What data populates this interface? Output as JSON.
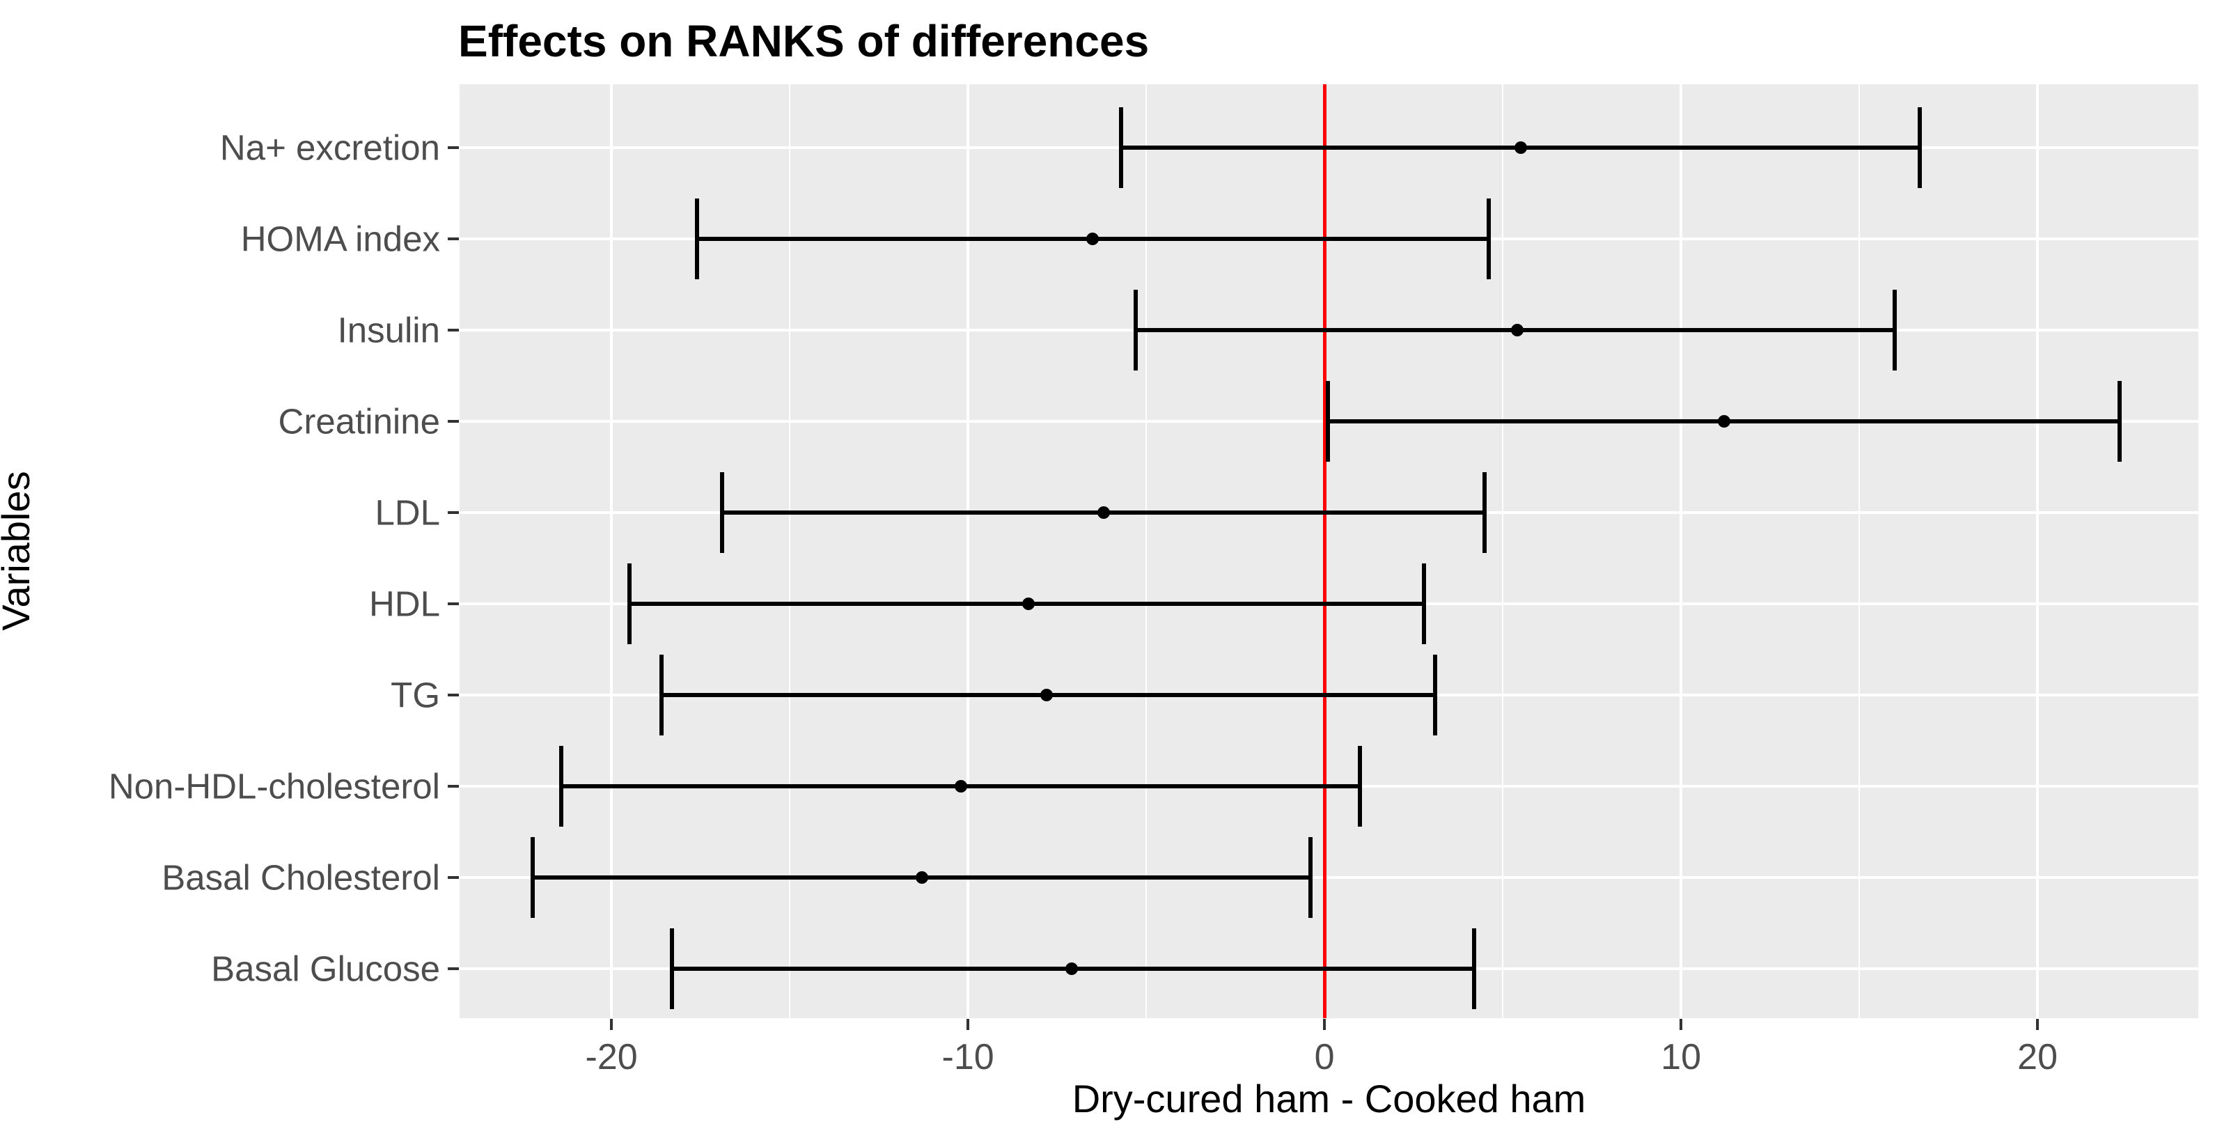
{
  "title": "Effects on RANKS of differences",
  "axes": {
    "y_title": "Variables",
    "x_title": "Dry-cured ham - Cooked ham"
  },
  "colors": {
    "panel_background": "#EBEBEB",
    "gridline": "#FFFFFF",
    "reference_line": "#FF0000",
    "errorbar": "#000000",
    "tick_mark": "#333333",
    "tick_label": "#4D4D4D",
    "title_text": "#000000"
  },
  "chart_data": {
    "type": "scatter",
    "subtype": "horizontal-dot-with-error-bars",
    "title": "Effects on RANKS of differences",
    "xlabel": "Dry-cured ham - Cooked ham",
    "ylabel": "Variables",
    "xlim": [
      -24.26,
      24.51
    ],
    "x_major_ticks": [
      -20,
      -10,
      0,
      10,
      20
    ],
    "x_minor_gridlines": [
      -25,
      -15,
      -5,
      5,
      15
    ],
    "grid": true,
    "legend": false,
    "reference_line_x": 0,
    "categories": [
      "Na+ excretion",
      "HOMA index",
      "Insulin",
      "Creatinine",
      "LDL",
      "HDL",
      "TG",
      "Non-HDL-cholesterol",
      "Basal Cholesterol",
      "Basal Glucose"
    ],
    "points": [
      {
        "label": "Na+ excretion",
        "mean": 5.5,
        "low": -5.7,
        "high": 16.7
      },
      {
        "label": "HOMA index",
        "mean": -6.5,
        "low": -17.6,
        "high": 4.6
      },
      {
        "label": "Insulin",
        "mean": 5.4,
        "low": -5.3,
        "high": 16.0
      },
      {
        "label": "Creatinine",
        "mean": 11.2,
        "low": 0.1,
        "high": 22.3
      },
      {
        "label": "LDL",
        "mean": -6.2,
        "low": -16.9,
        "high": 4.5
      },
      {
        "label": "HDL",
        "mean": -8.3,
        "low": -19.5,
        "high": 2.8
      },
      {
        "label": "TG",
        "mean": -7.8,
        "low": -18.6,
        "high": 3.1
      },
      {
        "label": "Non-HDL-cholesterol",
        "mean": -10.2,
        "low": -21.4,
        "high": 1.0
      },
      {
        "label": "Basal Cholesterol",
        "mean": -11.3,
        "low": -22.2,
        "high": -0.4
      },
      {
        "label": "Basal Glucose",
        "mean": -7.1,
        "low": -18.3,
        "high": 4.2
      }
    ]
  }
}
